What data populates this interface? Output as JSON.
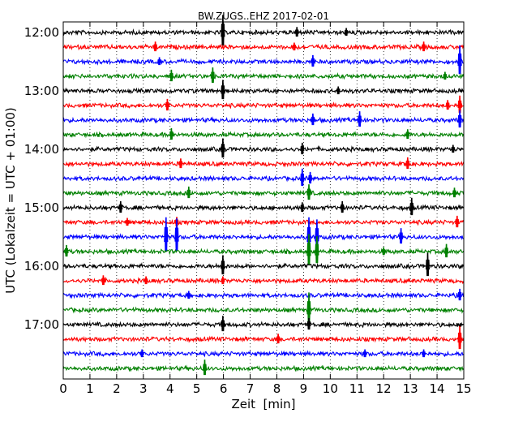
{
  "chart_data": {
    "type": "line",
    "title": "BW.ZUGS..EHZ 2017-02-01",
    "xlabel": "Zeit  [min]",
    "ylabel": "UTC (Lokalzeit = UTC + 01:00)",
    "xlim": [
      0,
      15
    ],
    "x_ticks": [
      "0",
      "1",
      "2",
      "3",
      "4",
      "5",
      "6",
      "7",
      "8",
      "9",
      "10",
      "11",
      "12",
      "13",
      "14",
      "15"
    ],
    "y_ticks": [
      "12:00",
      "13:00",
      "14:00",
      "15:00",
      "16:00",
      "17:00"
    ],
    "grid": "vertical dotted",
    "colors": [
      "#000000",
      "#ff0000",
      "#0000ff",
      "#008000"
    ],
    "traces": [
      {
        "start": "12:00",
        "color": "#000000",
        "events": [
          {
            "min": 5.98,
            "amp": 1.6
          },
          {
            "min": 8.75,
            "amp": 0.5
          },
          {
            "min": 10.6,
            "amp": 0.4
          }
        ]
      },
      {
        "start": "12:15",
        "color": "#ff0000",
        "events": [
          {
            "min": 3.45,
            "amp": 0.5
          },
          {
            "min": 8.65,
            "amp": 0.4
          },
          {
            "min": 13.5,
            "amp": 0.5
          }
        ]
      },
      {
        "start": "12:30",
        "color": "#0000ff",
        "events": [
          {
            "min": 3.6,
            "amp": 0.4
          },
          {
            "min": 9.35,
            "amp": 0.6
          },
          {
            "min": 14.85,
            "amp": 1.5
          }
        ]
      },
      {
        "start": "12:45",
        "color": "#008000",
        "events": [
          {
            "min": 4.05,
            "amp": 0.6
          },
          {
            "min": 5.6,
            "amp": 0.8
          },
          {
            "min": 14.3,
            "amp": 0.4
          }
        ]
      },
      {
        "start": "13:00",
        "color": "#000000",
        "events": [
          {
            "min": 5.98,
            "amp": 1.0
          },
          {
            "min": 10.3,
            "amp": 0.4
          }
        ]
      },
      {
        "start": "13:15",
        "color": "#ff0000",
        "events": [
          {
            "min": 3.9,
            "amp": 0.6
          },
          {
            "min": 14.4,
            "amp": 0.5
          },
          {
            "min": 14.85,
            "amp": 0.9
          }
        ]
      },
      {
        "start": "13:30",
        "color": "#0000ff",
        "events": [
          {
            "min": 9.35,
            "amp": 0.6
          },
          {
            "min": 11.1,
            "amp": 0.8
          },
          {
            "min": 14.85,
            "amp": 0.9
          }
        ]
      },
      {
        "start": "13:45",
        "color": "#008000",
        "events": [
          {
            "min": 4.05,
            "amp": 0.6
          },
          {
            "min": 12.9,
            "amp": 0.5
          }
        ]
      },
      {
        "start": "14:00",
        "color": "#000000",
        "events": [
          {
            "min": 5.98,
            "amp": 1.0
          },
          {
            "min": 8.95,
            "amp": 0.6
          },
          {
            "min": 14.6,
            "amp": 0.4
          }
        ]
      },
      {
        "start": "14:15",
        "color": "#ff0000",
        "events": [
          {
            "min": 4.4,
            "amp": 0.5
          },
          {
            "min": 12.9,
            "amp": 0.6
          }
        ]
      },
      {
        "start": "14:30",
        "color": "#0000ff",
        "events": [
          {
            "min": 8.95,
            "amp": 0.9
          },
          {
            "min": 9.25,
            "amp": 0.6
          }
        ]
      },
      {
        "start": "14:45",
        "color": "#008000",
        "events": [
          {
            "min": 4.7,
            "amp": 0.6
          },
          {
            "min": 9.2,
            "amp": 0.8
          },
          {
            "min": 14.65,
            "amp": 0.5
          }
        ]
      },
      {
        "start": "15:00",
        "color": "#000000",
        "events": [
          {
            "min": 2.15,
            "amp": 0.6
          },
          {
            "min": 8.95,
            "amp": 0.5
          },
          {
            "min": 10.45,
            "amp": 0.6
          },
          {
            "min": 13.05,
            "amp": 0.9
          }
        ]
      },
      {
        "start": "15:15",
        "color": "#ff0000",
        "events": [
          {
            "min": 2.4,
            "amp": 0.4
          },
          {
            "min": 4.25,
            "amp": 0.5
          },
          {
            "min": 14.75,
            "amp": 0.6
          }
        ]
      },
      {
        "start": "15:30",
        "color": "#0000ff",
        "events": [
          {
            "min": 3.85,
            "amp": 1.8
          },
          {
            "min": 4.25,
            "amp": 1.7
          },
          {
            "min": 9.2,
            "amp": 1.8
          },
          {
            "min": 9.5,
            "amp": 1.6
          },
          {
            "min": 12.65,
            "amp": 0.8
          }
        ]
      },
      {
        "start": "15:45",
        "color": "#008000",
        "events": [
          {
            "min": 0.12,
            "amp": 0.6
          },
          {
            "min": 9.2,
            "amp": 1.6
          },
          {
            "min": 9.5,
            "amp": 1.4
          },
          {
            "min": 12.0,
            "amp": 0.4
          },
          {
            "min": 14.35,
            "amp": 0.7
          }
        ]
      },
      {
        "start": "16:00",
        "color": "#000000",
        "events": [
          {
            "min": 5.98,
            "amp": 1.0
          },
          {
            "min": 13.65,
            "amp": 1.2
          }
        ]
      },
      {
        "start": "16:15",
        "color": "#ff0000",
        "events": [
          {
            "min": 1.5,
            "amp": 0.5
          },
          {
            "min": 3.1,
            "amp": 0.4
          },
          {
            "min": 5.98,
            "amp": 0.4
          }
        ]
      },
      {
        "start": "16:30",
        "color": "#0000ff",
        "events": [
          {
            "min": 4.7,
            "amp": 0.4
          },
          {
            "min": 14.85,
            "amp": 0.6
          }
        ]
      },
      {
        "start": "16:45",
        "color": "#008000",
        "events": [
          {
            "min": 9.2,
            "amp": 1.6
          }
        ]
      },
      {
        "start": "17:00",
        "color": "#000000",
        "events": [
          {
            "min": 5.98,
            "amp": 0.8
          },
          {
            "min": 9.2,
            "amp": 0.6
          }
        ]
      },
      {
        "start": "17:15",
        "color": "#ff0000",
        "events": [
          {
            "min": 8.05,
            "amp": 0.5
          },
          {
            "min": 14.85,
            "amp": 1.2
          }
        ]
      },
      {
        "start": "17:30",
        "color": "#0000ff",
        "events": [
          {
            "min": 2.95,
            "amp": 0.4
          },
          {
            "min": 11.3,
            "amp": 0.4
          },
          {
            "min": 13.5,
            "amp": 0.4
          }
        ]
      },
      {
        "start": "17:45",
        "color": "#008000",
        "events": [
          {
            "min": 5.3,
            "amp": 0.8
          }
        ]
      }
    ]
  }
}
